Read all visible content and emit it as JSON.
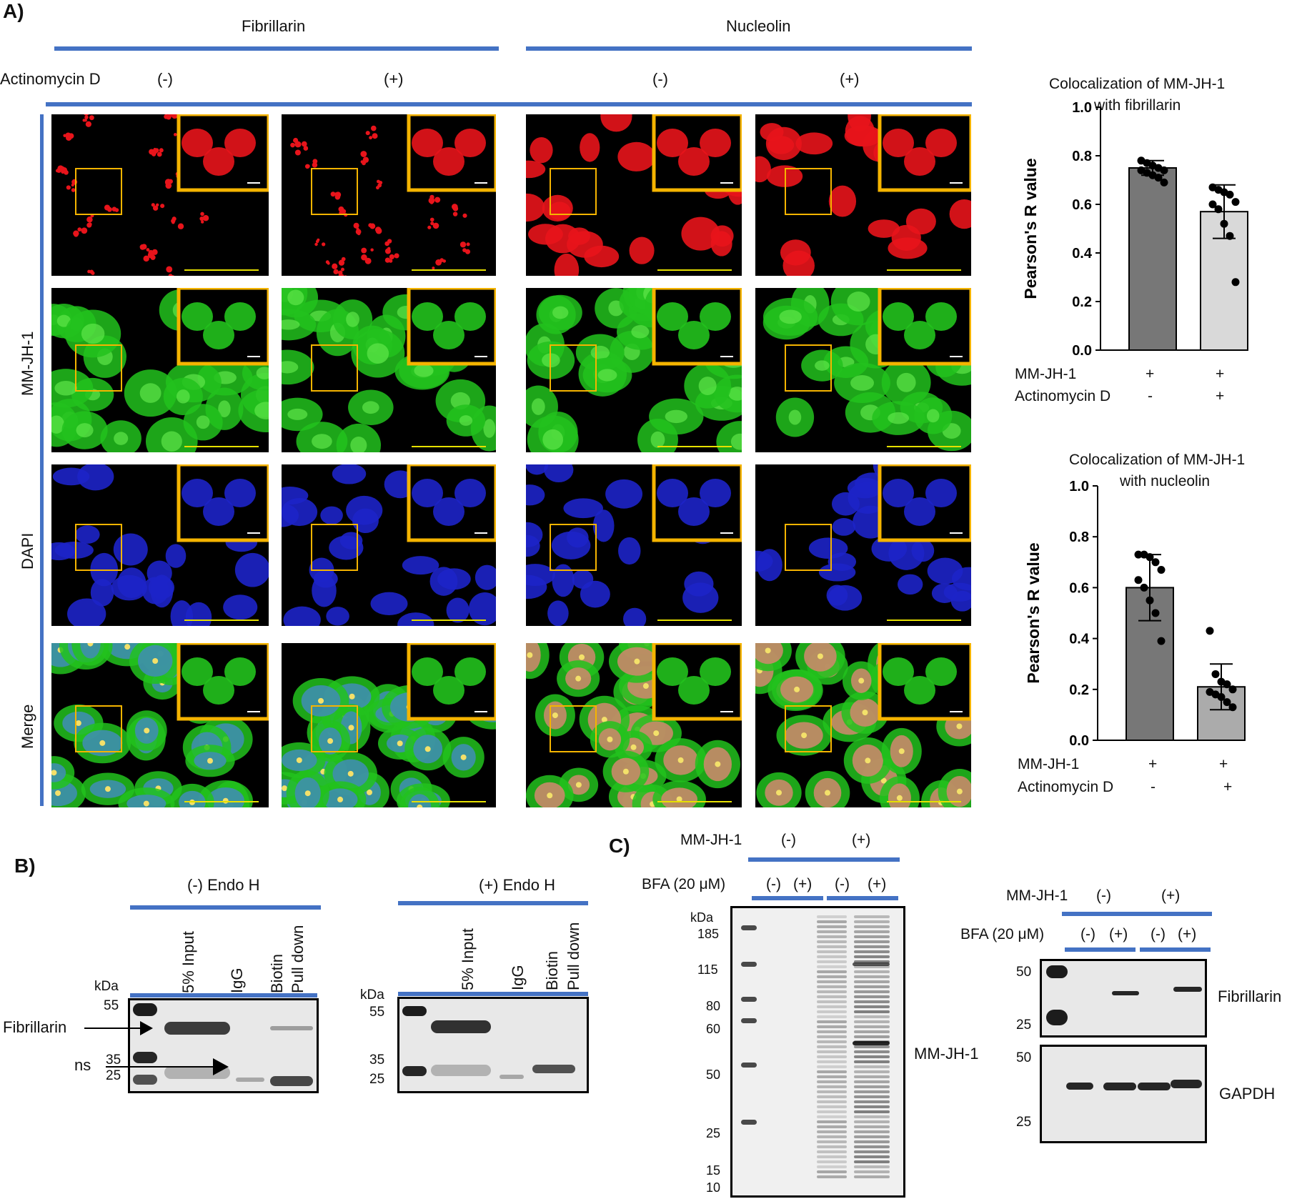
{
  "panelA": {
    "letter": "A)",
    "col_groups": [
      "Fibrillarin",
      "Nucleolin"
    ],
    "treatment_label": "Actinomycin D",
    "treatments": [
      "(-)",
      "(+)",
      "(-)",
      "(+)"
    ],
    "row_labels": [
      "MM-JH-1",
      "DAPI",
      "Merge"
    ],
    "colors": {
      "red": "#e8141b",
      "green": "#22c21d",
      "blue": "#1d24c8",
      "box": "#f5b400",
      "scale": "#e6e000",
      "accent": "#4472c4"
    }
  },
  "chart_fib": {
    "title_line1": "Colocalization of MM-JH-1",
    "title_line2": "with fibrillarin",
    "ylabel": "Pearson's R value",
    "row1_label": "MM-JH-1",
    "row2_label": "Actinomycin D",
    "row1_values": [
      "+",
      "+"
    ],
    "row2_values": [
      "-",
      "+"
    ]
  },
  "chart_nuc": {
    "title_line1": "Colocalization of MM-JH-1",
    "title_line2": "with nucleolin",
    "ylabel": "Pearson's R value",
    "row1_label": "MM-JH-1",
    "row2_label": "Actinomycin D",
    "row1_values": [
      "+",
      "+"
    ],
    "row2_values": [
      "-",
      "+"
    ]
  },
  "chart_data": [
    {
      "type": "bar",
      "categories": [
        "Actinomycin D -",
        "Actinomycin D +"
      ],
      "values": [
        0.75,
        0.57
      ],
      "errors": [
        0.03,
        0.11
      ],
      "points": [
        [
          0.78,
          0.77,
          0.76,
          0.75,
          0.74,
          0.74,
          0.73,
          0.72,
          0.71,
          0.69
        ],
        [
          0.67,
          0.66,
          0.65,
          0.64,
          0.61,
          0.6,
          0.58,
          0.52,
          0.47,
          0.28
        ]
      ],
      "bar_colors": [
        "#777777",
        "#d9d9d9"
      ],
      "title": "Colocalization of MM-JH-1 with fibrillarin",
      "ylabel": "Pearson's R value",
      "ylim": [
        0,
        1.0
      ],
      "yticks": [
        "0.0",
        "0.2",
        "0.4",
        "0.6",
        "0.8",
        "1.0"
      ]
    },
    {
      "type": "bar",
      "categories": [
        "Actinomycin D -",
        "Actinomycin D +"
      ],
      "values": [
        0.6,
        0.21
      ],
      "errors": [
        0.13,
        0.09
      ],
      "points": [
        [
          0.73,
          0.73,
          0.72,
          0.7,
          0.67,
          0.63,
          0.6,
          0.55,
          0.5,
          0.39
        ],
        [
          0.43,
          0.26,
          0.23,
          0.22,
          0.2,
          0.19,
          0.18,
          0.17,
          0.15,
          0.13
        ]
      ],
      "bar_colors": [
        "#777777",
        "#ababab"
      ],
      "title": "Colocalization of MM-JH-1 with nucleolin",
      "ylabel": "Pearson's R value",
      "ylim": [
        0,
        1.0
      ],
      "yticks": [
        "0.0",
        "0.2",
        "0.4",
        "0.6",
        "0.8",
        "1.0"
      ]
    }
  ],
  "panelB": {
    "letter": "B)",
    "groups": [
      "(-) Endo H",
      "(+) Endo H"
    ],
    "lanes": [
      "5% Input",
      "IgG",
      "Biotin",
      "Pull down"
    ],
    "kda": "kDa",
    "markers_left": [
      "55",
      "35",
      "25"
    ],
    "markers_right": [
      "55",
      "35",
      "25"
    ],
    "fibrillarin_label": "Fibrillarin",
    "ns_label": "ns"
  },
  "panelC": {
    "letter": "C)",
    "mm_label": "MM-JH-1",
    "mm_states": [
      "(-)",
      "(+)"
    ],
    "bfa_label": "BFA (20 μM)",
    "bfa_states": [
      "(-)",
      "(+)",
      "(-)",
      "(+)"
    ],
    "kda": "kDa",
    "big_markers": [
      "185",
      "115",
      "80",
      "60",
      "50",
      "25",
      "15",
      "10"
    ],
    "big_band_label": "MM-JH-1",
    "small_mm_label": "MM-JH-1",
    "small_mm_states": [
      "(-)",
      "(+)"
    ],
    "small_bfa_label": "BFA (20 μM)",
    "small_bfa_states": [
      "(-)",
      "(+)",
      "(-)",
      "(+)"
    ],
    "fib_markers": [
      "50",
      "25"
    ],
    "gapdh_markers": [
      "50",
      "25"
    ],
    "fib_label": "Fibrillarin",
    "gapdh_label": "GAPDH"
  }
}
